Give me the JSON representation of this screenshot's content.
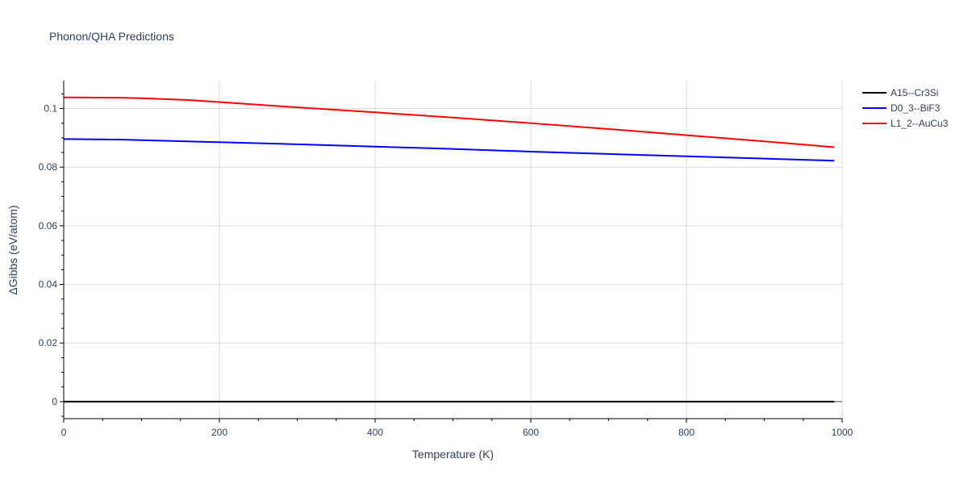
{
  "chart_data": {
    "type": "line",
    "title": "Phonon/QHA Predictions",
    "xlabel": "Temperature (K)",
    "ylabel": "ΔGibbs (eV/atom)",
    "xlim": [
      0,
      1000
    ],
    "ylim": [
      -0.0058,
      0.1095
    ],
    "grid": true,
    "legend_position": "top-right",
    "x_ticks": [
      0,
      200,
      400,
      600,
      800,
      1000
    ],
    "x_tick_labels": [
      "0",
      "200",
      "400",
      "600",
      "800",
      "1000"
    ],
    "y_ticks": [
      0,
      0.02,
      0.04,
      0.06,
      0.08,
      0.1
    ],
    "y_tick_labels": [
      "0",
      "0.02",
      "0.04",
      "0.06",
      "0.08",
      "0.1"
    ],
    "series": [
      {
        "name": "A15--Cr3Si",
        "color": "#000000",
        "x": [
          0,
          100,
          200,
          300,
          400,
          500,
          600,
          700,
          800,
          900,
          990
        ],
        "y": [
          0,
          0,
          0,
          0,
          0,
          0,
          0,
          0,
          0,
          0,
          0
        ]
      },
      {
        "name": "D0_3--BiF3",
        "color": "#0000ff",
        "x": [
          0,
          70,
          100,
          200,
          300,
          400,
          500,
          600,
          700,
          800,
          900,
          990
        ],
        "y": [
          0.0896,
          0.0894,
          0.0892,
          0.0885,
          0.0878,
          0.087,
          0.0862,
          0.0853,
          0.0845,
          0.0837,
          0.0829,
          0.0822
        ]
      },
      {
        "name": "L1_2--AuCu3",
        "color": "#ff0000",
        "x": [
          0,
          70,
          100,
          160,
          200,
          300,
          400,
          500,
          600,
          700,
          800,
          900,
          990
        ],
        "y": [
          0.1038,
          0.1037,
          0.1035,
          0.1029,
          0.1022,
          0.1004,
          0.0987,
          0.0969,
          0.095,
          0.093,
          0.0909,
          0.0888,
          0.0868
        ]
      }
    ]
  }
}
